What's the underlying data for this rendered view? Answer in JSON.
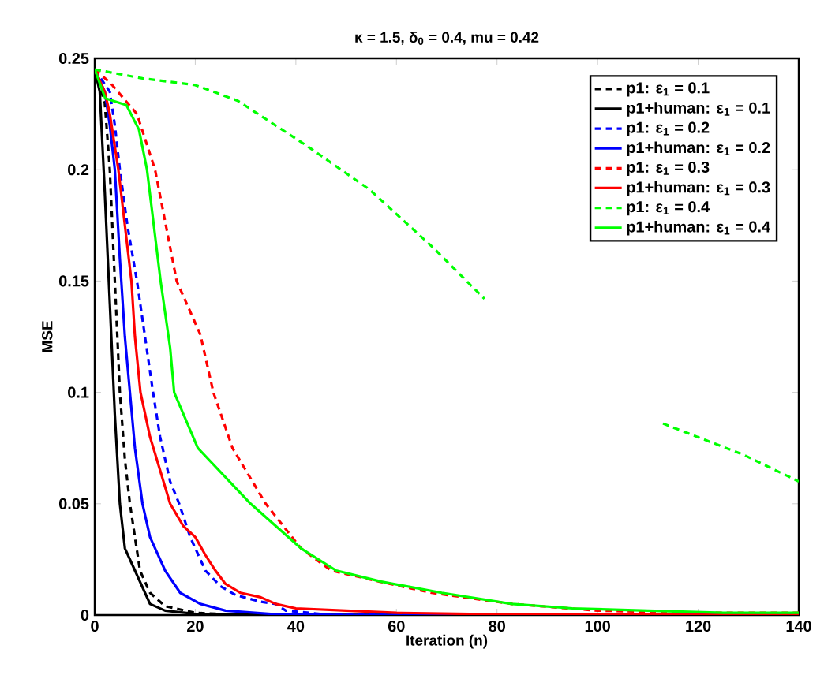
{
  "chart_data": {
    "type": "line",
    "title": "κ = 1.5, δ$_{0}$ = 0.4, mu = 0.42",
    "xlabel": "Iteration (n)",
    "ylabel": "MSE",
    "xlim": [
      0,
      140
    ],
    "ylim": [
      0,
      0.25
    ],
    "xticks": [
      0,
      20,
      40,
      60,
      80,
      100,
      120,
      140
    ],
    "yticks": [
      0,
      0.05,
      0.1,
      0.15,
      0.2,
      0.25
    ],
    "legend": "top right",
    "series": [
      {
        "name": "p1: ε$_{1}$ = 0.1",
        "color": "#000000",
        "line_style": "dashed",
        "x": [
          0,
          2,
          3,
          4,
          5,
          6,
          7,
          9,
          11,
          14,
          20,
          30,
          140
        ],
        "values": [
          0.245,
          0.23,
          0.2,
          0.15,
          0.1,
          0.07,
          0.05,
          0.02,
          0.01,
          0.004,
          0.001,
          0,
          0
        ]
      },
      {
        "name": "p1+human: ε$_{1}$ = 0.1",
        "color": "#000000",
        "line_style": "solid",
        "x": [
          0,
          1,
          2,
          3,
          4,
          5,
          6,
          8,
          11,
          14,
          20,
          40,
          140
        ],
        "values": [
          0.245,
          0.235,
          0.19,
          0.14,
          0.09,
          0.05,
          0.03,
          0.02,
          0.005,
          0.002,
          0.0005,
          0,
          0
        ]
      },
      {
        "name": "p1: ε$_{1}$ = 0.2",
        "color": "#0000ff",
        "line_style": "dashed",
        "x": [
          0,
          3,
          4,
          5,
          6.5,
          8.4,
          10,
          11.6,
          13,
          15,
          16.8,
          19,
          22,
          25,
          28,
          33,
          36,
          38,
          45,
          60,
          140
        ],
        "values": [
          0.245,
          0.235,
          0.22,
          0.2,
          0.175,
          0.15,
          0.125,
          0.1,
          0.08,
          0.06,
          0.05,
          0.035,
          0.02,
          0.013,
          0.009,
          0.006,
          0.005,
          0.002,
          0.0005,
          0,
          0
        ]
      },
      {
        "name": "p1+human: ε$_{1}$ = 0.2",
        "color": "#0000ff",
        "line_style": "solid",
        "x": [
          0,
          2,
          3,
          4,
          5,
          6,
          7,
          8,
          9.5,
          11,
          14,
          17,
          21,
          26,
          35,
          50,
          140
        ],
        "values": [
          0.245,
          0.235,
          0.22,
          0.2,
          0.16,
          0.125,
          0.1,
          0.075,
          0.05,
          0.035,
          0.02,
          0.01,
          0.005,
          0.002,
          0.0005,
          0,
          0
        ]
      },
      {
        "name": "p1: ε$_{1}$ = 0.3",
        "color": "#ff0000",
        "line_style": "dashed",
        "x": [
          0,
          3.1,
          8.4,
          12,
          16.3,
          21,
          23.6,
          27.4,
          34,
          41,
          47,
          56.7,
          67,
          83,
          100,
          120,
          140
        ],
        "values": [
          0.245,
          0.239,
          0.225,
          0.2,
          0.15,
          0.126,
          0.1,
          0.075,
          0.05,
          0.03,
          0.02,
          0.015,
          0.01,
          0.005,
          0.002,
          0.001,
          0.001
        ]
      },
      {
        "name": "p1+human: ε$_{1}$ = 0.3",
        "color": "#ff0000",
        "line_style": "solid",
        "x": [
          0,
          2,
          3,
          4.7,
          6,
          7.3,
          8,
          9.1,
          11,
          13,
          15,
          17.6,
          20,
          22,
          24,
          26,
          29,
          33,
          36,
          40,
          50,
          60,
          80,
          140
        ],
        "values": [
          0.245,
          0.235,
          0.225,
          0.2,
          0.175,
          0.15,
          0.125,
          0.1,
          0.08,
          0.065,
          0.05,
          0.04,
          0.035,
          0.027,
          0.02,
          0.014,
          0.01,
          0.008,
          0.005,
          0.003,
          0.002,
          0.001,
          0.0003,
          0
        ]
      },
      {
        "name": "p1: ε$_{1}$ = 0.4",
        "color": "#00ff00",
        "line_style": "dashed",
        "x": [
          0,
          9.5,
          20,
          28.4,
          42,
          54.7,
          67.3,
          77.5,
          90,
          100,
          113,
          129,
          140
        ],
        "values": [
          0.245,
          0.241,
          0.238,
          0.231,
          0.211,
          0.191,
          0.165,
          0.142,
          null,
          null,
          0.086,
          0.072,
          0.06
        ]
      },
      {
        "name": "p1+human: ε$_{1}$ = 0.4",
        "color": "#00ff00",
        "line_style": "solid",
        "x": [
          0,
          2.1,
          6.3,
          8.8,
          10.4,
          13.1,
          15,
          15.8,
          20.5,
          31,
          41,
          48,
          57,
          69,
          83,
          95,
          110,
          125,
          140
        ],
        "values": [
          0.245,
          0.232,
          0.229,
          0.218,
          0.2,
          0.15,
          0.12,
          0.1,
          0.075,
          0.05,
          0.03,
          0.02,
          0.015,
          0.01,
          0.005,
          0.003,
          0.002,
          0.001,
          0.001
        ]
      }
    ]
  }
}
